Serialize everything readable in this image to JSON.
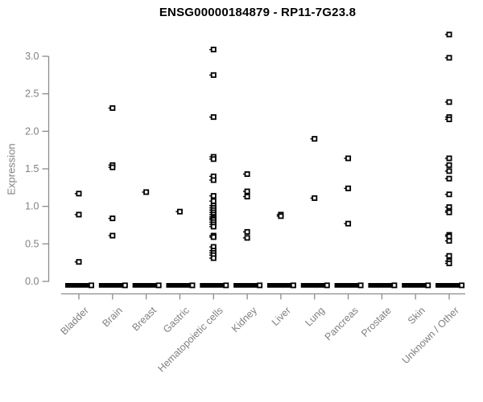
{
  "chart_data": {
    "type": "scatter",
    "subtype": "strip-plot",
    "title": "ENSG00000184879 - RP11-7G23.8",
    "xlabel": "",
    "ylabel": "Expression",
    "ylim": [
      0,
      3.4
    ],
    "yticks": [
      0.0,
      0.5,
      1.0,
      1.5,
      2.0,
      2.5,
      3.0
    ],
    "ytick_labels": [
      "0.0",
      "0.5",
      "1.0",
      "1.5",
      "2.0",
      "2.5",
      "3.0"
    ],
    "grid": "off",
    "legend": "none",
    "marker": "open-square",
    "colors": {
      "title": "#000000",
      "axis_text": "#808080",
      "axis_line": "#8c8c8c",
      "marker": "#000000",
      "zero_bar": "#000000",
      "background": "#ffffff"
    },
    "categories": [
      "Bladder",
      "Brain",
      "Breast",
      "Gastric",
      "Hematopoietic cells",
      "Kidney",
      "Liver",
      "Lung",
      "Pancreas",
      "Prostate",
      "Skin",
      "Unknown / Other"
    ],
    "series": [
      {
        "name": "Bladder",
        "zero_cluster": true,
        "values": [
          1.17,
          0.89,
          0.26
        ]
      },
      {
        "name": "Brain",
        "zero_cluster": true,
        "values": [
          2.31,
          1.55,
          1.52,
          0.84,
          0.61
        ]
      },
      {
        "name": "Breast",
        "zero_cluster": true,
        "values": [
          1.19
        ]
      },
      {
        "name": "Gastric",
        "zero_cluster": true,
        "values": [
          0.93
        ]
      },
      {
        "name": "Hematopoietic cells",
        "zero_cluster": true,
        "values": [
          3.09,
          2.75,
          2.19,
          1.66,
          1.63,
          1.4,
          1.35,
          1.14,
          1.07,
          1.01,
          0.98,
          0.95,
          0.92,
          0.89,
          0.86,
          0.84,
          0.82,
          0.79,
          0.76,
          0.73,
          0.61,
          0.59,
          0.46,
          0.41,
          0.38,
          0.35,
          0.31
        ]
      },
      {
        "name": "Kidney",
        "zero_cluster": true,
        "values": [
          1.43,
          1.2,
          1.13,
          0.66,
          0.58
        ]
      },
      {
        "name": "Liver",
        "zero_cluster": true,
        "values": [
          0.89,
          0.87
        ]
      },
      {
        "name": "Lung",
        "zero_cluster": true,
        "values": [
          1.9,
          1.11
        ]
      },
      {
        "name": "Pancreas",
        "zero_cluster": true,
        "values": [
          1.64,
          1.24,
          0.77
        ]
      },
      {
        "name": "Prostate",
        "zero_cluster": true,
        "values": []
      },
      {
        "name": "Skin",
        "zero_cluster": true,
        "values": []
      },
      {
        "name": "Unknown / Other",
        "zero_cluster": true,
        "values": [
          3.29,
          2.98,
          2.39,
          2.19,
          2.16,
          1.64,
          1.55,
          1.47,
          1.37,
          1.16,
          0.99,
          0.94,
          0.92,
          0.62,
          0.6,
          0.54,
          0.34,
          0.27,
          0.24
        ]
      }
    ]
  }
}
